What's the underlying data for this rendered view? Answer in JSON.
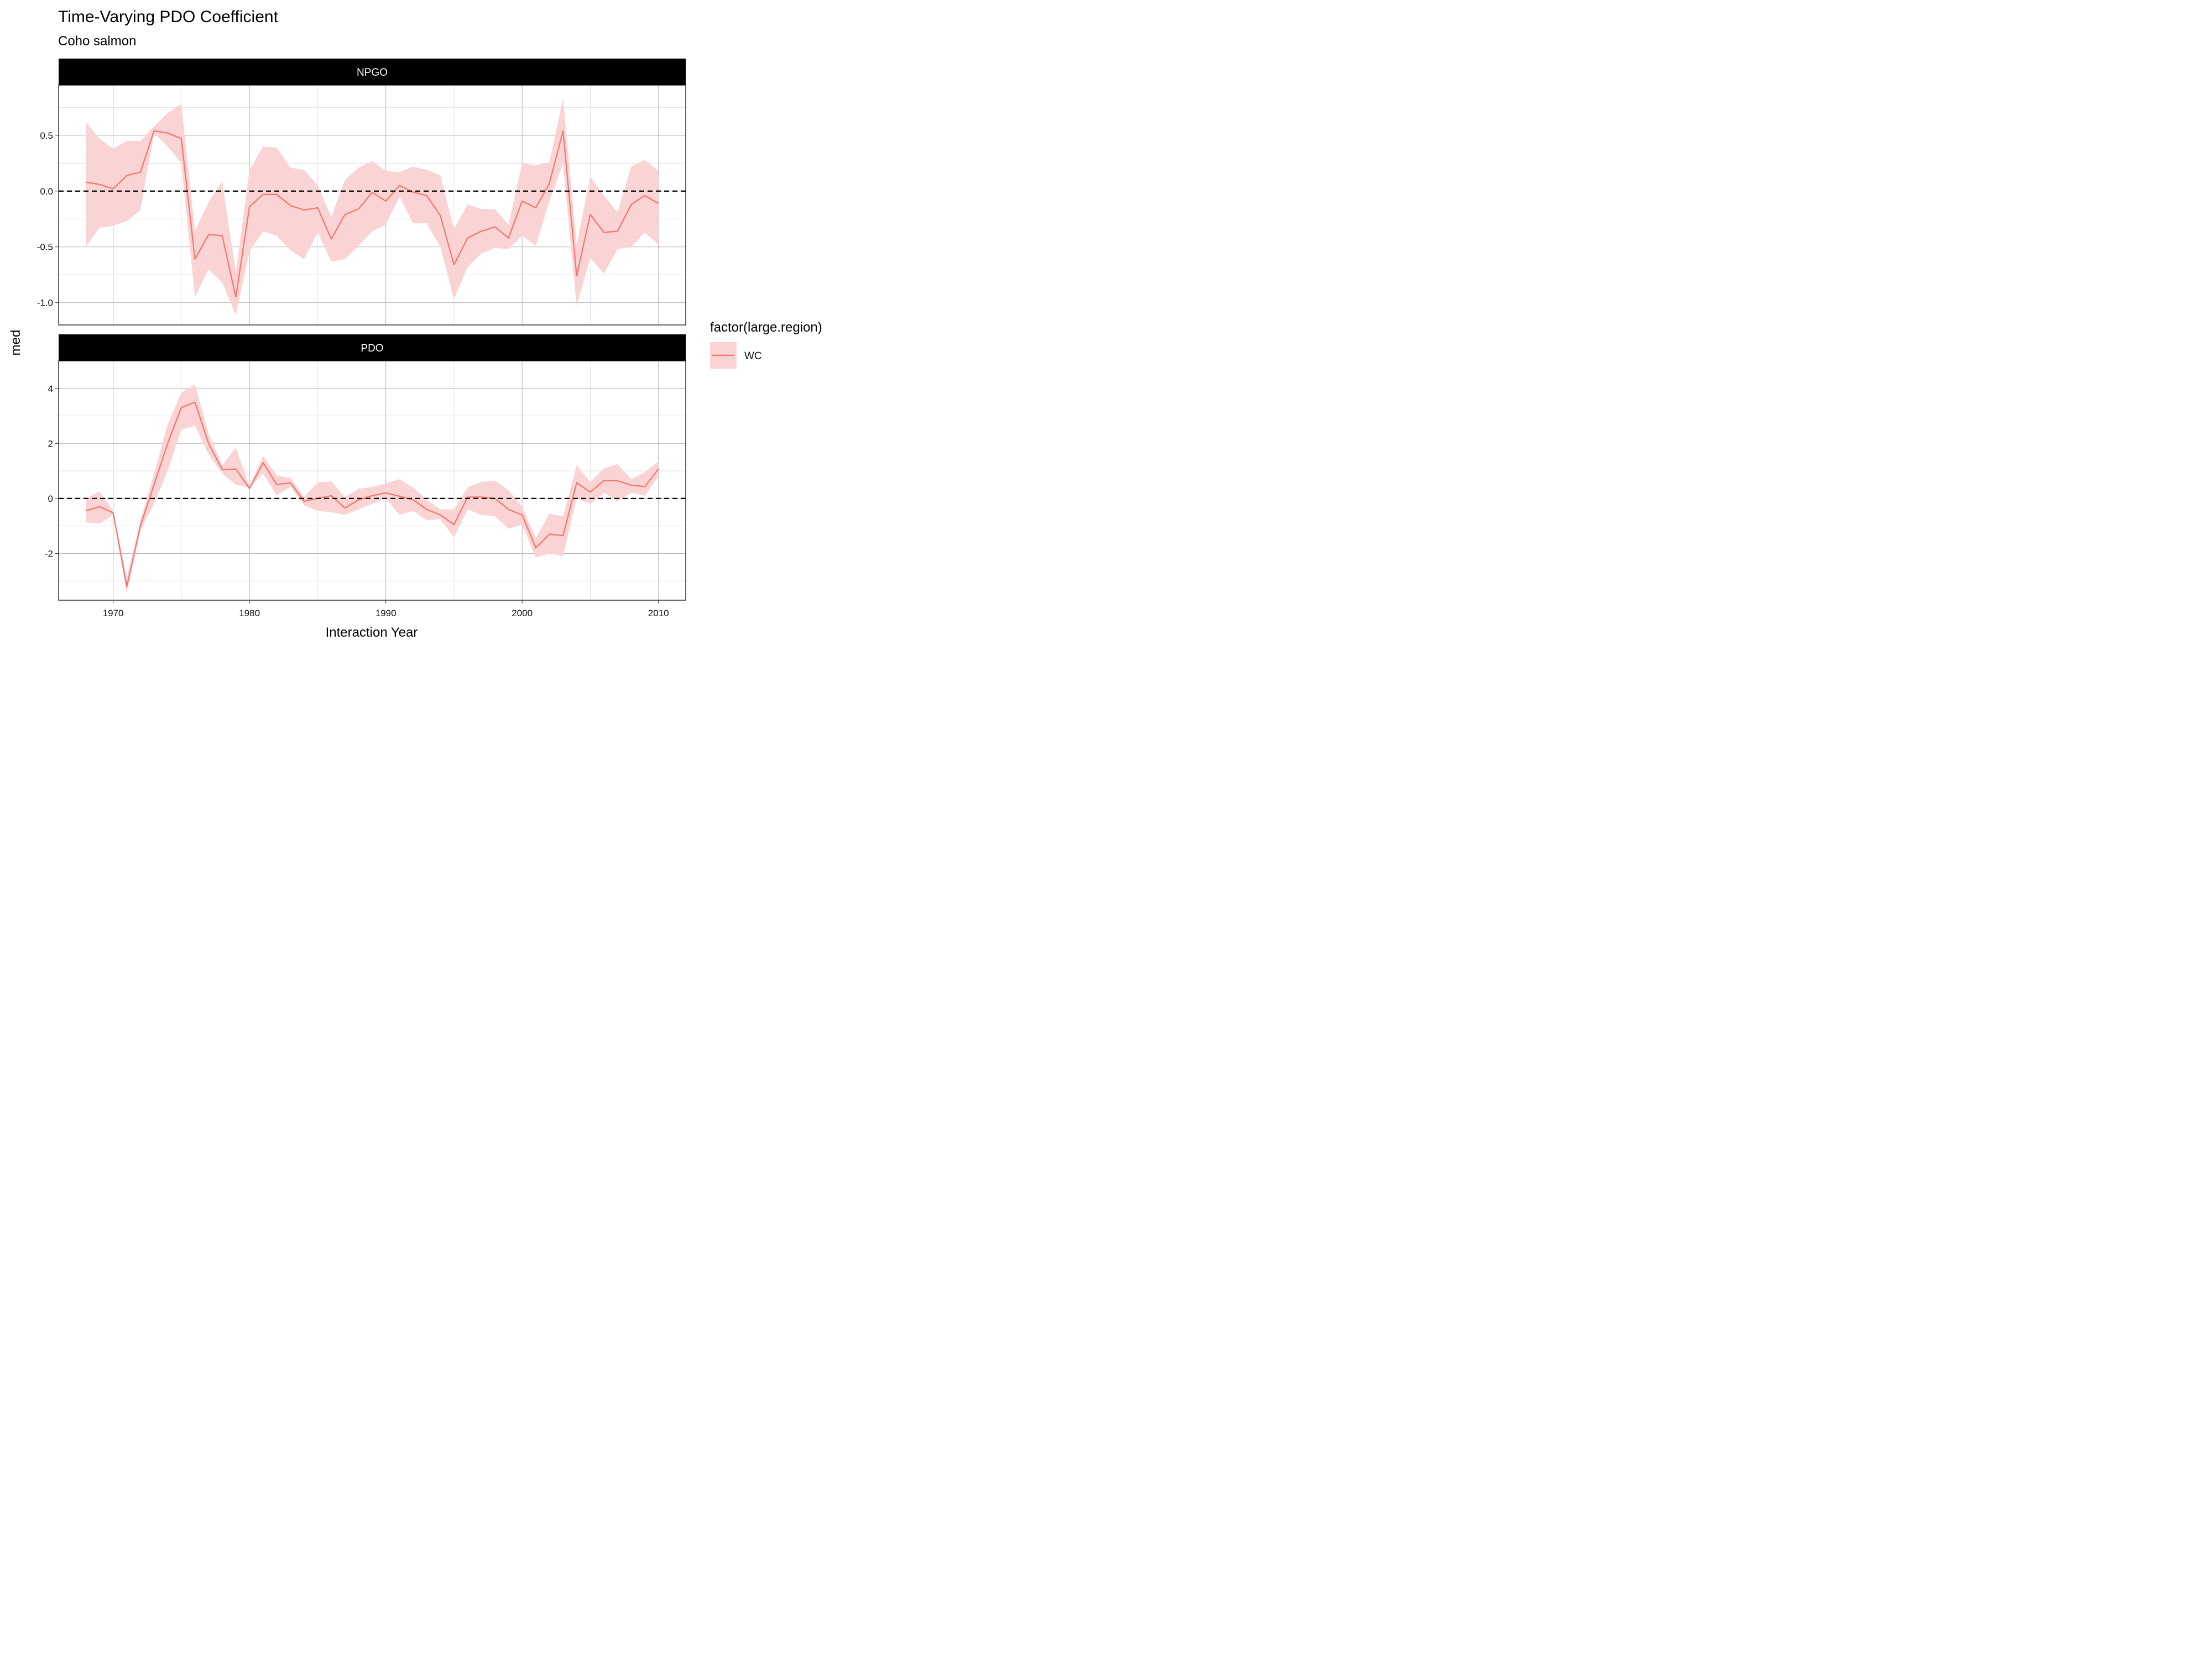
{
  "chart_data": {
    "type": "line",
    "title": "Time-Varying PDO Coefficient",
    "subtitle": "Coho salmon",
    "xlabel": "Interaction Year",
    "ylabel": "med",
    "xlim": [
      1966,
      2012
    ],
    "x_ticks": [
      1970,
      1980,
      1990,
      2000,
      2010
    ],
    "legend": {
      "title": "factor(large.region)",
      "position": "right",
      "entries": [
        {
          "label": "WC",
          "color": "#F8766D",
          "fill": "#FAD4D4"
        }
      ]
    },
    "colors": {
      "line": "#F8766D",
      "ribbon": "#FAD4D4",
      "strip_bg": "#000000",
      "zero_line": "#000000"
    },
    "panels": [
      {
        "label": "NPGO",
        "ylim": [
          -1.2,
          0.95
        ],
        "y_ticks": [
          -1.0,
          -0.5,
          0.0,
          0.5
        ],
        "y_tick_labels": [
          "-1.0",
          "-0.5",
          "0.0",
          "0.5"
        ],
        "reference_line": 0,
        "series": [
          {
            "name": "WC",
            "x": [
              1968,
              1969,
              1970,
              1971,
              1972,
              1973,
              1974,
              1975,
              1976,
              1977,
              1978,
              1979,
              1980,
              1981,
              1982,
              1983,
              1984,
              1985,
              1986,
              1987,
              1988,
              1989,
              1990,
              1991,
              1992,
              1993,
              1994,
              1995,
              1996,
              1997,
              1998,
              1999,
              2000,
              2001,
              2002,
              2003,
              2004,
              2005,
              2006,
              2007,
              2008,
              2009,
              2010
            ],
            "med": [
              0.08,
              0.06,
              0.02,
              0.14,
              0.17,
              0.54,
              0.52,
              0.47,
              -0.61,
              -0.39,
              -0.4,
              -0.95,
              -0.14,
              -0.03,
              -0.03,
              -0.13,
              -0.17,
              -0.15,
              -0.43,
              -0.21,
              -0.16,
              -0.01,
              -0.09,
              0.05,
              -0.01,
              -0.04,
              -0.22,
              -0.66,
              -0.42,
              -0.36,
              -0.32,
              -0.42,
              -0.09,
              -0.15,
              0.07,
              0.54,
              -0.76,
              -0.21,
              -0.37,
              -0.36,
              -0.12,
              -0.04,
              -0.11
            ],
            "lower": [
              -0.5,
              -0.33,
              -0.31,
              -0.27,
              -0.17,
              0.52,
              0.4,
              0.25,
              -0.95,
              -0.7,
              -0.82,
              -1.11,
              -0.54,
              -0.36,
              -0.4,
              -0.53,
              -0.61,
              -0.37,
              -0.63,
              -0.61,
              -0.49,
              -0.36,
              -0.3,
              -0.05,
              -0.29,
              -0.29,
              -0.5,
              -0.97,
              -0.68,
              -0.56,
              -0.51,
              -0.52,
              -0.4,
              -0.49,
              -0.09,
              0.25,
              -1.03,
              -0.6,
              -0.74,
              -0.52,
              -0.5,
              -0.37,
              -0.48
            ],
            "upper": [
              0.62,
              0.47,
              0.38,
              0.45,
              0.45,
              0.58,
              0.7,
              0.78,
              -0.36,
              -0.1,
              0.09,
              -0.73,
              0.19,
              0.4,
              0.39,
              0.21,
              0.19,
              0.05,
              -0.23,
              0.1,
              0.21,
              0.27,
              0.18,
              0.17,
              0.22,
              0.19,
              0.14,
              -0.34,
              -0.12,
              -0.16,
              -0.16,
              -0.3,
              0.25,
              0.23,
              0.26,
              0.83,
              -0.48,
              0.13,
              -0.04,
              -0.19,
              0.22,
              0.28,
              0.18
            ]
          }
        ]
      },
      {
        "label": "PDO",
        "ylim": [
          -3.7,
          5.0
        ],
        "y_ticks": [
          -2,
          0,
          2,
          4
        ],
        "y_tick_labels": [
          "-2",
          "0",
          "2",
          "4"
        ],
        "reference_line": 0,
        "series": [
          {
            "name": "WC",
            "x": [
              1968,
              1969,
              1970,
              1971,
              1972,
              1973,
              1974,
              1975,
              1976,
              1977,
              1978,
              1979,
              1980,
              1981,
              1982,
              1983,
              1984,
              1985,
              1986,
              1987,
              1988,
              1989,
              1990,
              1991,
              1992,
              1993,
              1994,
              1995,
              1996,
              1997,
              1998,
              1999,
              2000,
              2001,
              2002,
              2003,
              2004,
              2005,
              2006,
              2007,
              2008,
              2009,
              2010
            ],
            "med": [
              -0.45,
              -0.3,
              -0.52,
              -3.2,
              -1.0,
              0.5,
              2.0,
              3.3,
              3.5,
              2.0,
              1.05,
              1.07,
              0.36,
              1.3,
              0.5,
              0.57,
              -0.1,
              0.0,
              0.1,
              -0.35,
              -0.05,
              0.1,
              0.2,
              0.08,
              -0.05,
              -0.4,
              -0.6,
              -0.95,
              0.05,
              0.05,
              0.0,
              -0.4,
              -0.6,
              -1.8,
              -1.3,
              -1.35,
              0.57,
              0.23,
              0.65,
              0.64,
              0.48,
              0.43,
              1.07
            ],
            "lower": [
              -0.87,
              -0.92,
              -0.6,
              -3.45,
              -1.15,
              -0.2,
              1.0,
              2.5,
              2.65,
              1.6,
              0.9,
              0.5,
              0.4,
              0.9,
              0.1,
              0.43,
              -0.25,
              -0.45,
              -0.5,
              -0.6,
              -0.4,
              -0.2,
              0.0,
              -0.6,
              -0.45,
              -0.8,
              -0.75,
              -1.42,
              -0.4,
              -0.6,
              -0.65,
              -1.1,
              -0.95,
              -2.15,
              -2.0,
              -2.1,
              0.0,
              -0.2,
              0.2,
              -0.1,
              0.2,
              0.1,
              0.8
            ],
            "upper": [
              0.0,
              0.25,
              -0.45,
              -2.9,
              -0.8,
              0.9,
              2.7,
              3.85,
              4.15,
              2.35,
              1.2,
              1.85,
              0.45,
              1.55,
              0.83,
              0.75,
              0.05,
              0.58,
              0.62,
              0.05,
              0.35,
              0.42,
              0.55,
              0.7,
              0.4,
              -0.05,
              -0.4,
              -0.4,
              0.4,
              0.6,
              0.65,
              0.3,
              -0.3,
              -1.45,
              -0.55,
              -0.65,
              1.2,
              0.6,
              1.1,
              1.25,
              0.7,
              0.95,
              1.35
            ]
          }
        ]
      }
    ]
  }
}
